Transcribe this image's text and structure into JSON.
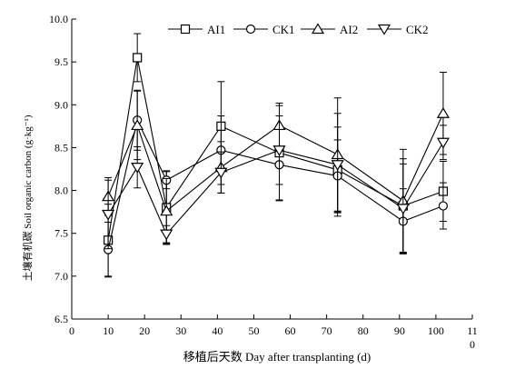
{
  "chart_data": {
    "type": "line",
    "xlabel": "移植后天数 Day after transplanting (d)",
    "ylabel": "土壤有机碳 Soil organic carbon (g·kg⁻¹)",
    "xlim": [
      0,
      110
    ],
    "ylim": [
      6.5,
      10.0
    ],
    "x_ticks": [
      0,
      10,
      20,
      30,
      40,
      50,
      60,
      70,
      80,
      90,
      100
    ],
    "x_tick_labels": [
      "0",
      "10",
      "20",
      "30",
      "40",
      "50",
      "60",
      "70",
      "80",
      "90",
      "100"
    ],
    "x_last_tick_label": [
      "11",
      "0"
    ],
    "y_ticks": [
      6.5,
      7.0,
      7.5,
      8.0,
      8.5,
      9.0,
      9.5,
      10.0
    ],
    "y_tick_labels": [
      "6.5",
      "7.0",
      "7.5",
      "8.0",
      "8.5",
      "9.0",
      "9.5",
      "10.0"
    ],
    "x": [
      10,
      18,
      26,
      41,
      57,
      73,
      91,
      102
    ],
    "grid": false,
    "legend_position": "top",
    "series": [
      {
        "name": "AI1",
        "marker": "square",
        "values": [
          7.42,
          9.55,
          7.8,
          8.75,
          8.44,
          8.24,
          7.82,
          7.99
        ],
        "errors": [
          0.42,
          0.28,
          0.43,
          0.52,
          0.55,
          0.5,
          0.55,
          0.35
        ]
      },
      {
        "name": "CK1",
        "marker": "circle",
        "values": [
          7.31,
          8.82,
          8.12,
          8.47,
          8.3,
          8.17,
          7.64,
          7.82
        ],
        "errors": [
          0.32,
          0.35,
          0.1,
          0.4,
          0.42,
          0.42,
          0.38,
          0.27
        ]
      },
      {
        "name": "AI2",
        "marker": "triangle-up",
        "values": [
          7.93,
          8.76,
          7.76,
          8.27,
          8.76,
          8.42,
          7.88,
          8.9
        ],
        "errors": [
          0.22,
          0.4,
          0.38,
          0.3,
          0.26,
          0.66,
          0.6,
          0.48
        ]
      },
      {
        "name": "CK2",
        "marker": "triangle-down",
        "values": [
          7.72,
          8.27,
          7.49,
          8.21,
          8.47,
          8.3,
          7.79,
          8.56
        ],
        "errors": [
          0.4,
          0.24,
          0.1,
          0.24,
          0.4,
          0.6,
          0.52,
          0.2
        ]
      }
    ]
  }
}
